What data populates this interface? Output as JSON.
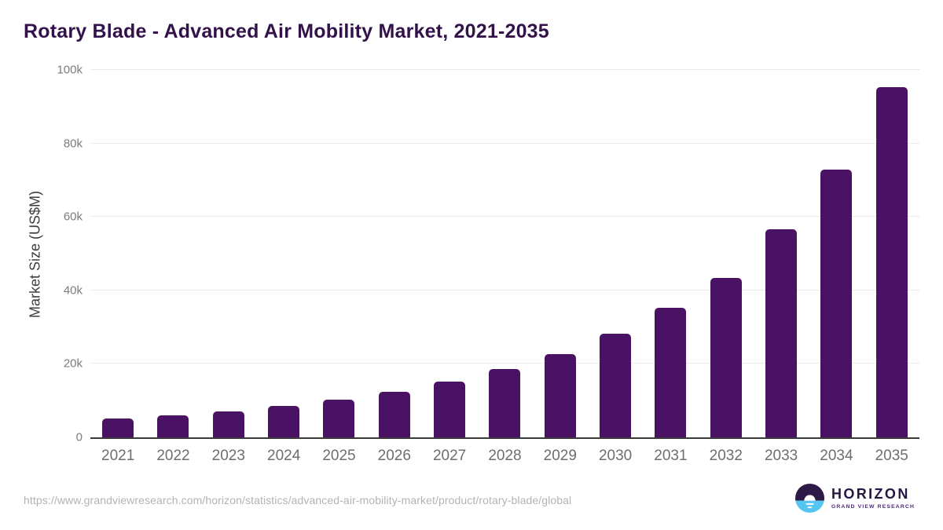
{
  "title": "Rotary Blade - Advanced Air Mobility Market, 2021-2035",
  "chart_data": {
    "type": "bar",
    "title": "Rotary Blade - Advanced Air Mobility Market, 2021-2035",
    "categories": [
      "2021",
      "2022",
      "2023",
      "2024",
      "2025",
      "2026",
      "2027",
      "2028",
      "2029",
      "2030",
      "2031",
      "2032",
      "2033",
      "2034",
      "2035"
    ],
    "values": [
      5100,
      6000,
      7100,
      8600,
      10300,
      12400,
      15100,
      18600,
      22600,
      28200,
      35300,
      43400,
      56700,
      72900,
      95300
    ],
    "xlabel": "",
    "ylabel": "Market Size (US$M)",
    "ylim": [
      0,
      100000
    ],
    "yticks": [
      {
        "value": 0,
        "label": "0"
      },
      {
        "value": 20000,
        "label": "20k"
      },
      {
        "value": 40000,
        "label": "40k"
      },
      {
        "value": 60000,
        "label": "60k"
      },
      {
        "value": 80000,
        "label": "80k"
      },
      {
        "value": 100000,
        "label": "100k"
      }
    ],
    "grid": "horizontal",
    "legend": "none",
    "bar_color": "#4a1262"
  },
  "colors": {
    "title": "#33124a",
    "bar": "#4a1262",
    "axis_line": "#3a3a3a",
    "gridline": "#e9e9e9",
    "tick_label": "#7c7c7c",
    "x_label": "#6e6e6e",
    "url_text": "#b3b3b3",
    "logo_dark": "#2e1a47",
    "logo_blue": "#56c5f2",
    "logo_name": "#241742",
    "logo_subtitle": "#4f2583"
  },
  "footer": {
    "url": "https://www.grandviewresearch.com/horizon/statistics/advanced-air-mobility-market/product/rotary-blade/global",
    "logo": {
      "name": "HORIZON",
      "subtitle": "GRAND VIEW RESEARCH"
    }
  }
}
